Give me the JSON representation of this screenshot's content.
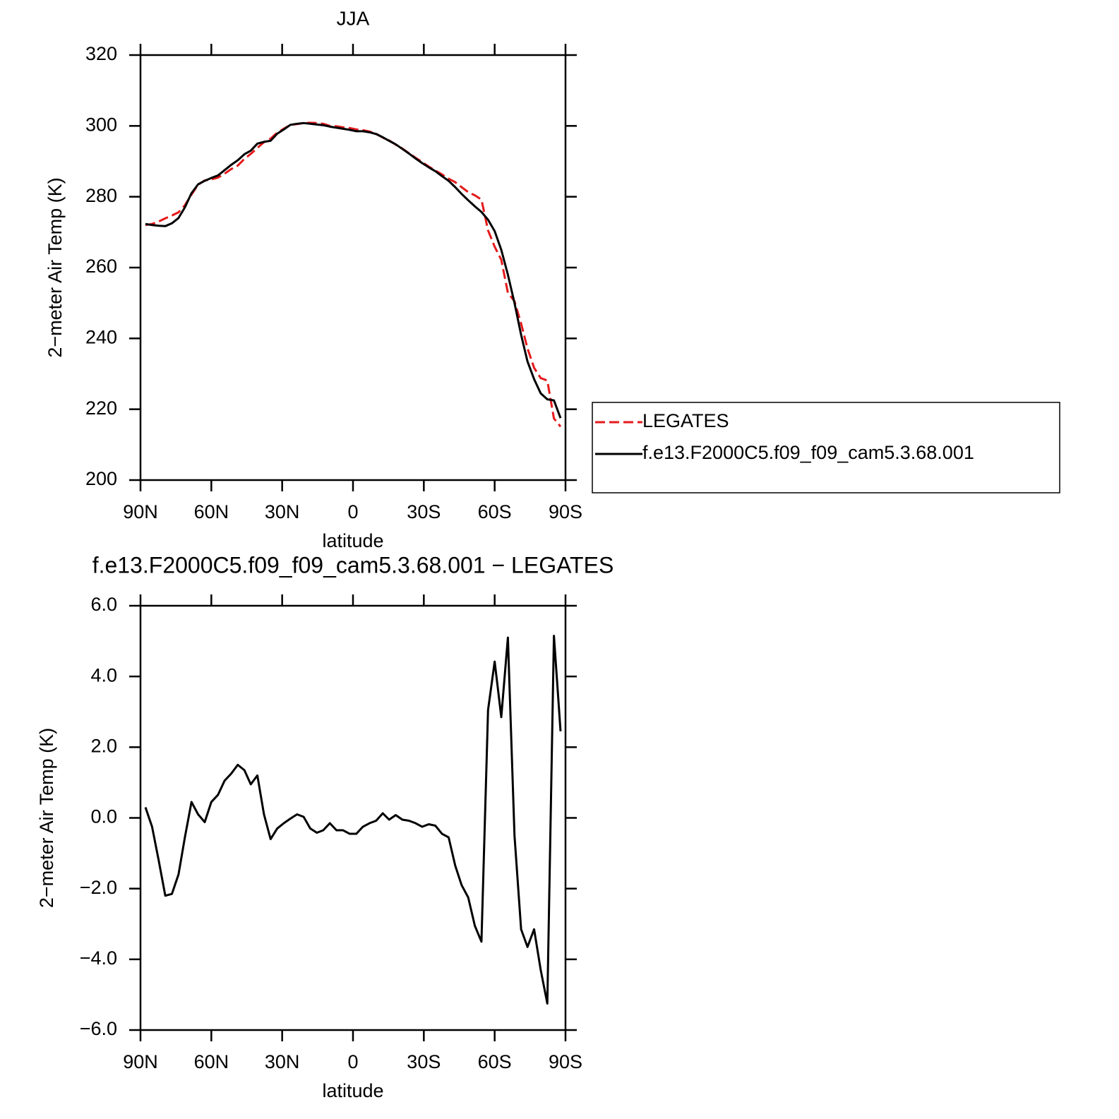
{
  "chart_data": [
    {
      "type": "line",
      "title": "JJA",
      "xlabel": "latitude",
      "ylabel": "2−meter Air Temp (K)",
      "x": [
        87.9,
        85.1,
        82.3,
        79.5,
        76.7,
        73.9,
        71.2,
        68.4,
        65.6,
        62.8,
        60.0,
        57.2,
        54.4,
        51.6,
        48.8,
        46.0,
        43.3,
        40.5,
        37.7,
        34.9,
        32.1,
        29.3,
        26.5,
        23.7,
        20.9,
        18.1,
        15.3,
        12.6,
        9.8,
        7.0,
        4.2,
        1.4,
        -1.4,
        -4.2,
        -7.0,
        -9.8,
        -12.6,
        -15.3,
        -18.1,
        -20.9,
        -23.7,
        -26.5,
        -29.3,
        -32.1,
        -34.9,
        -37.7,
        -40.5,
        -43.3,
        -46.0,
        -48.8,
        -51.6,
        -54.4,
        -57.2,
        -60.0,
        -62.8,
        -65.6,
        -68.4,
        -71.2,
        -73.9,
        -76.7,
        -79.5,
        -82.3,
        -85.1,
        -87.9
      ],
      "series": [
        {
          "name": "LEGATES",
          "color": "#e41a1c",
          "line_style": "dashed",
          "values": [
            272.0,
            272.3,
            273.0,
            273.9,
            274.7,
            275.6,
            277.6,
            280.6,
            283.4,
            284.6,
            284.9,
            285.4,
            286.5,
            287.8,
            288.8,
            290.7,
            292.1,
            293.8,
            295.4,
            296.4,
            298.1,
            299.2,
            300.3,
            300.5,
            300.8,
            300.9,
            300.8,
            300.6,
            300.0,
            299.9,
            299.6,
            299.4,
            299.0,
            298.8,
            298.4,
            297.8,
            296.7,
            295.9,
            294.7,
            293.6,
            292.3,
            291.0,
            289.8,
            288.5,
            287.4,
            286.3,
            285.1,
            284.1,
            282.7,
            281.3,
            280.4,
            279.2,
            270.5,
            265.9,
            262.2,
            252.9,
            250.5,
            244.2,
            237.2,
            231.7,
            228.8,
            228.1,
            217.4,
            215.1
          ]
        },
        {
          "name": "f.e13.F2000C5.f09_f09_cam5.3.68.001",
          "color": "#000000",
          "line_style": "solid",
          "values": [
            272.3,
            272.0,
            271.8,
            271.7,
            272.5,
            274.0,
            277.0,
            281.0,
            283.5,
            284.5,
            285.3,
            286.0,
            287.5,
            289.0,
            290.3,
            292.0,
            293.0,
            295.0,
            295.5,
            295.8,
            297.8,
            299.0,
            300.3,
            300.6,
            300.8,
            300.6,
            300.4,
            300.2,
            299.8,
            299.5,
            299.2,
            298.9,
            298.5,
            298.5,
            298.2,
            297.7,
            296.8,
            295.8,
            294.8,
            293.5,
            292.2,
            290.8,
            289.5,
            288.3,
            287.2,
            285.8,
            284.5,
            282.7,
            280.8,
            279.0,
            277.3,
            275.7,
            273.5,
            270.3,
            265.0,
            258.0,
            250.0,
            241.0,
            233.5,
            228.5,
            224.5,
            222.8,
            222.5,
            217.5
          ]
        }
      ],
      "xlim": [
        90,
        -90
      ],
      "xticks": [
        {
          "value": 90,
          "label": "90N"
        },
        {
          "value": 60,
          "label": "60N"
        },
        {
          "value": 30,
          "label": "30N"
        },
        0,
        {
          "value": -30,
          "label": "30S"
        },
        {
          "value": -60,
          "label": "60S"
        },
        {
          "value": -90,
          "label": "90S"
        }
      ],
      "ylim": [
        200,
        320
      ],
      "yticks": [
        200,
        220,
        240,
        260,
        280,
        300,
        320
      ],
      "legend_position": "right"
    },
    {
      "type": "line",
      "title": "f.e13.F2000C5.f09_f09_cam5.3.68.001 − LEGATES",
      "xlabel": "latitude",
      "ylabel": "2−meter Air Temp (K)",
      "x": [
        87.9,
        85.1,
        82.3,
        79.5,
        76.7,
        73.9,
        71.2,
        68.4,
        65.6,
        62.8,
        60.0,
        57.2,
        54.4,
        51.6,
        48.8,
        46.0,
        43.3,
        40.5,
        37.7,
        34.9,
        32.1,
        29.3,
        26.5,
        23.7,
        20.9,
        18.1,
        15.3,
        12.6,
        9.8,
        7.0,
        4.2,
        1.4,
        -1.4,
        -4.2,
        -7.0,
        -9.8,
        -12.6,
        -15.3,
        -18.1,
        -20.9,
        -23.7,
        -26.5,
        -29.3,
        -32.1,
        -34.9,
        -37.7,
        -40.5,
        -43.3,
        -46.0,
        -48.8,
        -51.6,
        -54.4,
        -57.2,
        -60.0,
        -62.8,
        -65.6,
        -68.4,
        -71.2,
        -73.9,
        -76.7,
        -79.5,
        -82.3,
        -85.1,
        -87.9
      ],
      "values": [
        0.3,
        -0.25,
        -1.2,
        -2.2,
        -2.15,
        -1.6,
        -0.55,
        0.45,
        0.1,
        -0.12,
        0.45,
        0.65,
        1.05,
        1.25,
        1.5,
        1.35,
        0.95,
        1.2,
        0.1,
        -0.6,
        -0.3,
        -0.15,
        -0.02,
        0.1,
        0.03,
        -0.3,
        -0.42,
        -0.35,
        -0.15,
        -0.35,
        -0.35,
        -0.45,
        -0.45,
        -0.25,
        -0.15,
        -0.08,
        0.13,
        -0.05,
        0.08,
        -0.05,
        -0.08,
        -0.15,
        -0.25,
        -0.18,
        -0.22,
        -0.45,
        -0.55,
        -1.35,
        -1.9,
        -2.25,
        -3.05,
        -3.5,
        3.05,
        4.42,
        2.85,
        5.1,
        -0.5,
        -3.15,
        -3.65,
        -3.15,
        -4.3,
        -5.25,
        5.15,
        2.45
      ],
      "color": "#000000",
      "xlim": [
        90,
        -90
      ],
      "xticks": [
        {
          "value": 90,
          "label": "90N"
        },
        {
          "value": 60,
          "label": "60N"
        },
        {
          "value": 30,
          "label": "30N"
        },
        0,
        {
          "value": -30,
          "label": "30S"
        },
        {
          "value": -60,
          "label": "60S"
        },
        {
          "value": -90,
          "label": "90S"
        }
      ],
      "ylim": [
        -6,
        6
      ],
      "yticks": [
        {
          "value": -6,
          "label": "−6.0"
        },
        {
          "value": -4,
          "label": "−4.0"
        },
        {
          "value": -2,
          "label": "−2.0"
        },
        {
          "value": 0,
          "label": "0.0"
        },
        {
          "value": 2,
          "label": "2.0"
        },
        {
          "value": 4,
          "label": "4.0"
        },
        {
          "value": 6,
          "label": "6.0"
        }
      ]
    }
  ]
}
